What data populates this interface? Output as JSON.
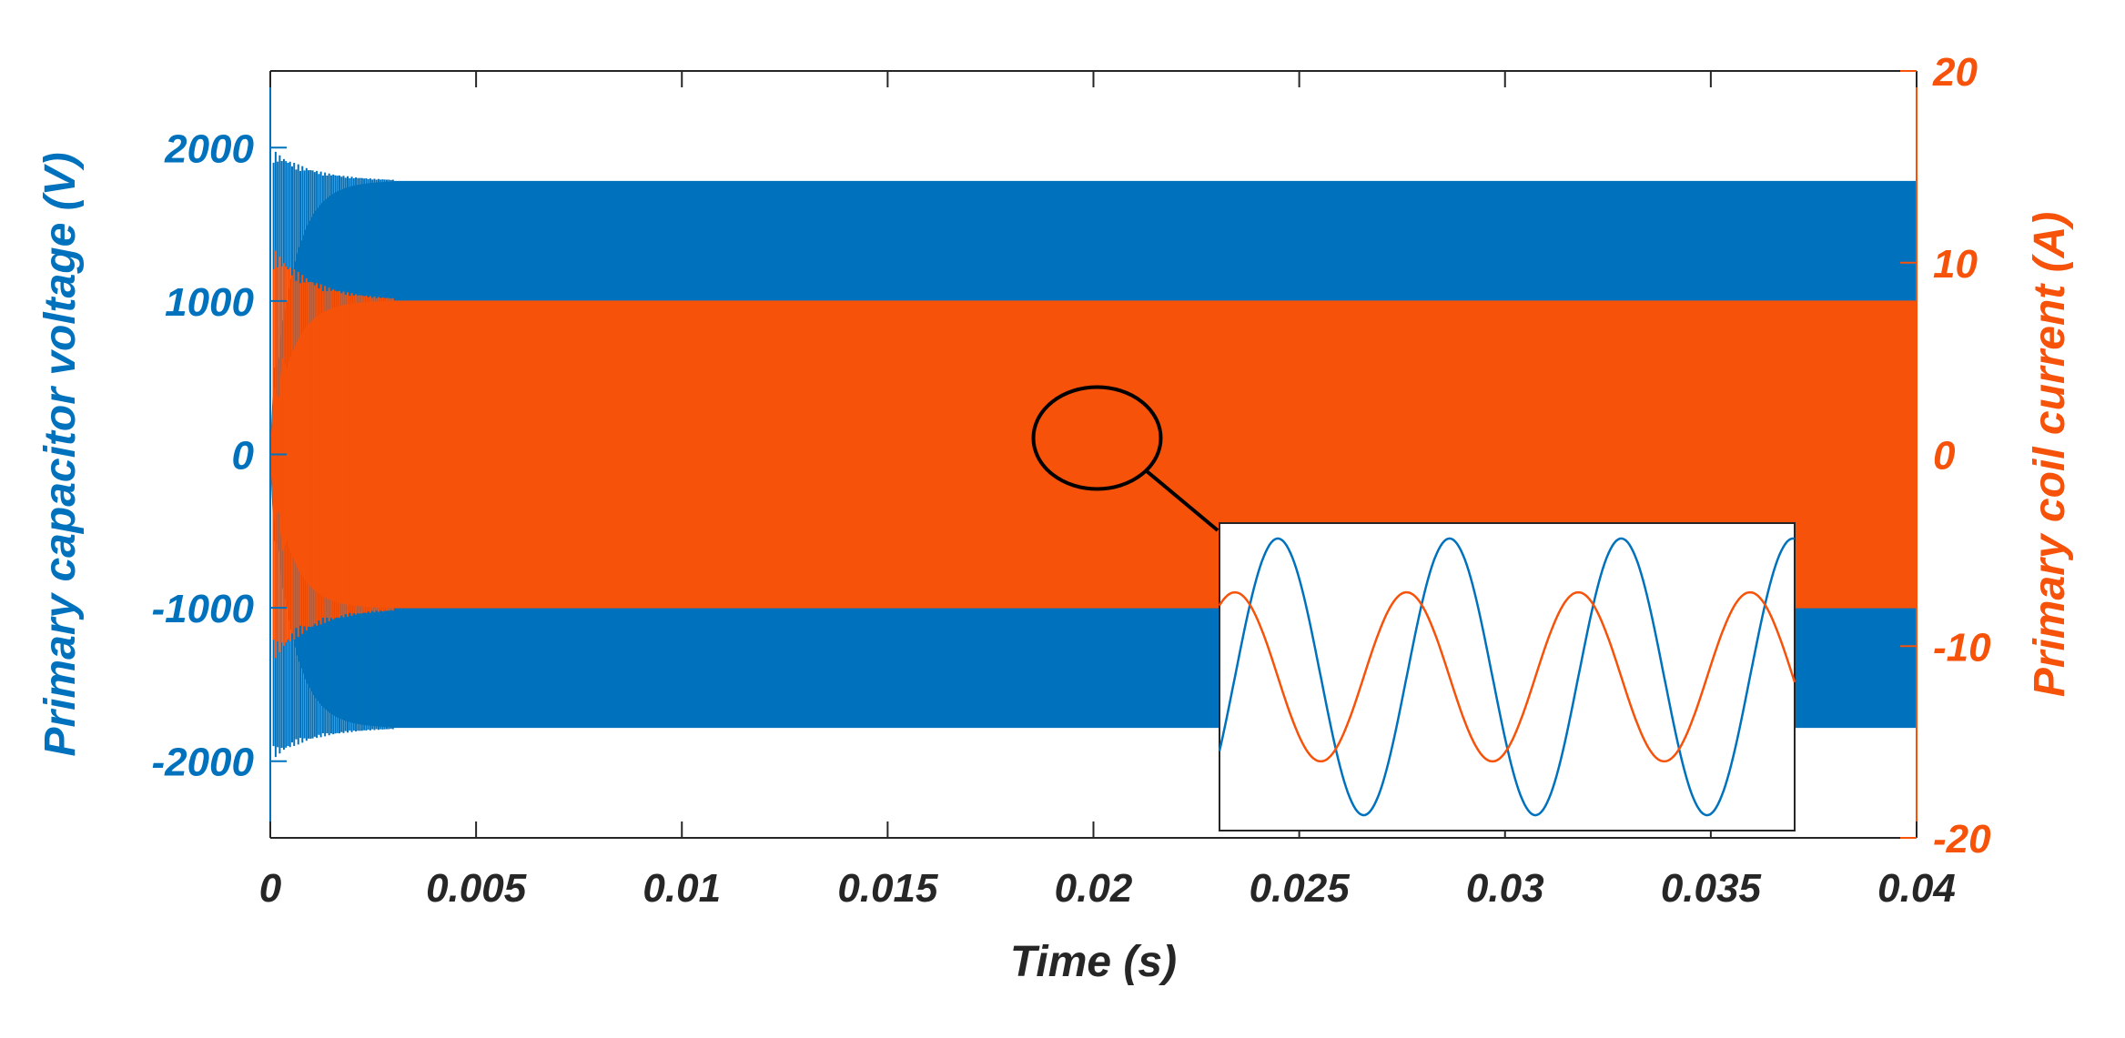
{
  "chart_data": {
    "type": "line",
    "xlabel": "Time (s)",
    "ylabel_left": "Primary capacitor voltage (V)",
    "ylabel_right": "Primary coil current (A)",
    "xlim": [
      0,
      0.04
    ],
    "ylim_left": [
      -2500,
      2500
    ],
    "ylim_right": [
      -20,
      20
    ],
    "x_ticks": [
      "0",
      "0.005",
      "0.01",
      "0.015",
      "0.02",
      "0.025",
      "0.03",
      "0.035",
      "0.04"
    ],
    "y_ticks_left": [
      "-2000",
      "-1000",
      "0",
      "1000",
      "2000"
    ],
    "y_ticks_right": [
      "-20",
      "-10",
      "0",
      "10",
      "20"
    ],
    "colors": {
      "voltage": "#0072BD",
      "current": "#F6520A",
      "annotation": "#000000"
    },
    "series": [
      {
        "name": "Primary capacitor voltage",
        "axis": "left",
        "color": "#0072BD",
        "steady_state_amplitude": 1780,
        "initial_peak": 2000,
        "settling_time": 0.003,
        "note": "High-frequency oscillation, envelope shown filled"
      },
      {
        "name": "Primary coil current",
        "axis": "right",
        "color": "#F6520A",
        "steady_state_amplitude": 8,
        "initial_peak": 11,
        "settling_time": 0.003,
        "note": "High-frequency oscillation, envelope shown filled"
      }
    ],
    "inset": {
      "description": "zoom-in around t = 0.02 s",
      "zoom_center": {
        "x": 0.02,
        "y_left": 0
      },
      "voltage_cycles": 3.35,
      "current_cycles": 3.35,
      "current_phase_lead_cycles": 0.25
    }
  }
}
